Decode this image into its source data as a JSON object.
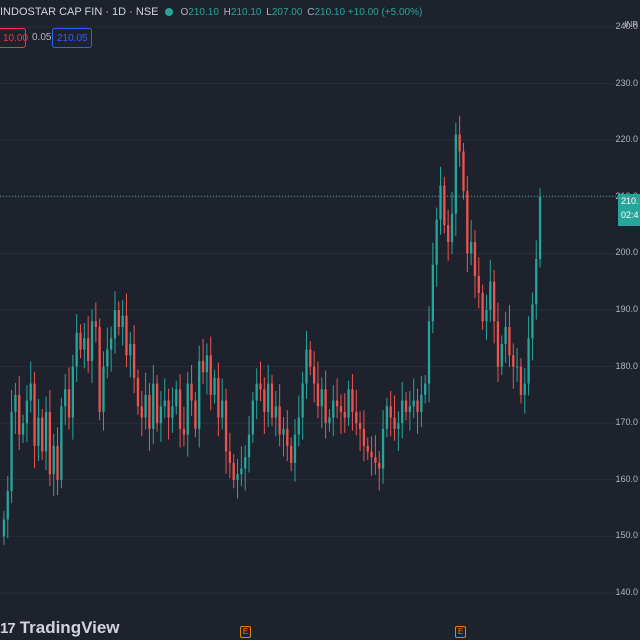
{
  "header": {
    "symbol": "INDOSTAR CAP FIN · 1D · NSE",
    "o_label": "O",
    "o_value": "210.10",
    "h_label": "H",
    "h_value": "210.10",
    "l_label": "L",
    "l_value": "207.00",
    "c_label": "C",
    "c_value": "210.10",
    "change": "+10.00 (+5.00%)"
  },
  "trade": {
    "sell_price": "10.00",
    "spread": "0.05",
    "buy_price": "210.05"
  },
  "axis": {
    "currency": "INR",
    "last_price_line1": "210.",
    "last_price_line2": "02:4"
  },
  "branding": {
    "name": "TradingView",
    "mark": "17"
  },
  "events": [
    "E",
    "E"
  ],
  "colors": {
    "up": "#26a69a",
    "down": "#ef5350",
    "background": "#1e222d",
    "grid": "#2a2e39"
  },
  "chart_data": {
    "type": "candlestick",
    "title": "INDOSTAR CAP FIN · 1D · NSE",
    "ylim": [
      137,
      243
    ],
    "yticks": [
      140,
      150,
      160,
      170,
      180,
      190,
      200,
      210,
      220,
      230,
      240
    ],
    "last_price": 210.1,
    "closes": [
      153,
      158,
      172,
      175,
      168,
      170,
      174,
      177,
      166,
      171,
      165,
      172,
      161,
      166,
      160,
      173,
      176,
      171,
      180,
      186,
      183,
      185,
      181,
      188,
      187,
      172,
      180,
      183,
      185,
      190,
      187,
      189,
      182,
      184,
      178,
      173,
      171,
      175,
      169,
      177,
      170,
      173,
      174,
      171,
      173,
      176,
      169,
      168,
      177,
      174,
      169,
      181,
      179,
      182,
      175,
      178,
      171,
      174,
      165,
      163,
      160,
      161,
      162,
      164,
      168,
      174,
      177,
      176,
      172,
      177,
      171,
      173,
      168,
      169,
      166,
      163,
      168,
      171,
      177,
      183,
      180,
      177,
      173,
      176,
      170,
      171,
      174,
      173,
      172,
      171,
      176,
      172,
      170,
      169,
      166,
      165,
      164,
      163,
      162,
      169,
      173,
      171,
      169,
      170,
      174,
      172,
      173,
      174,
      172,
      175,
      177,
      188,
      198,
      206,
      212,
      205,
      202,
      207,
      221,
      218,
      211,
      200,
      202,
      196,
      193,
      188,
      190,
      195,
      188,
      180,
      184,
      187,
      182,
      180,
      180,
      175,
      177,
      185,
      191,
      199,
      210
    ],
    "series": [
      {
        "name": "INDOSTAR CAP FIN",
        "values": "closes"
      }
    ]
  }
}
